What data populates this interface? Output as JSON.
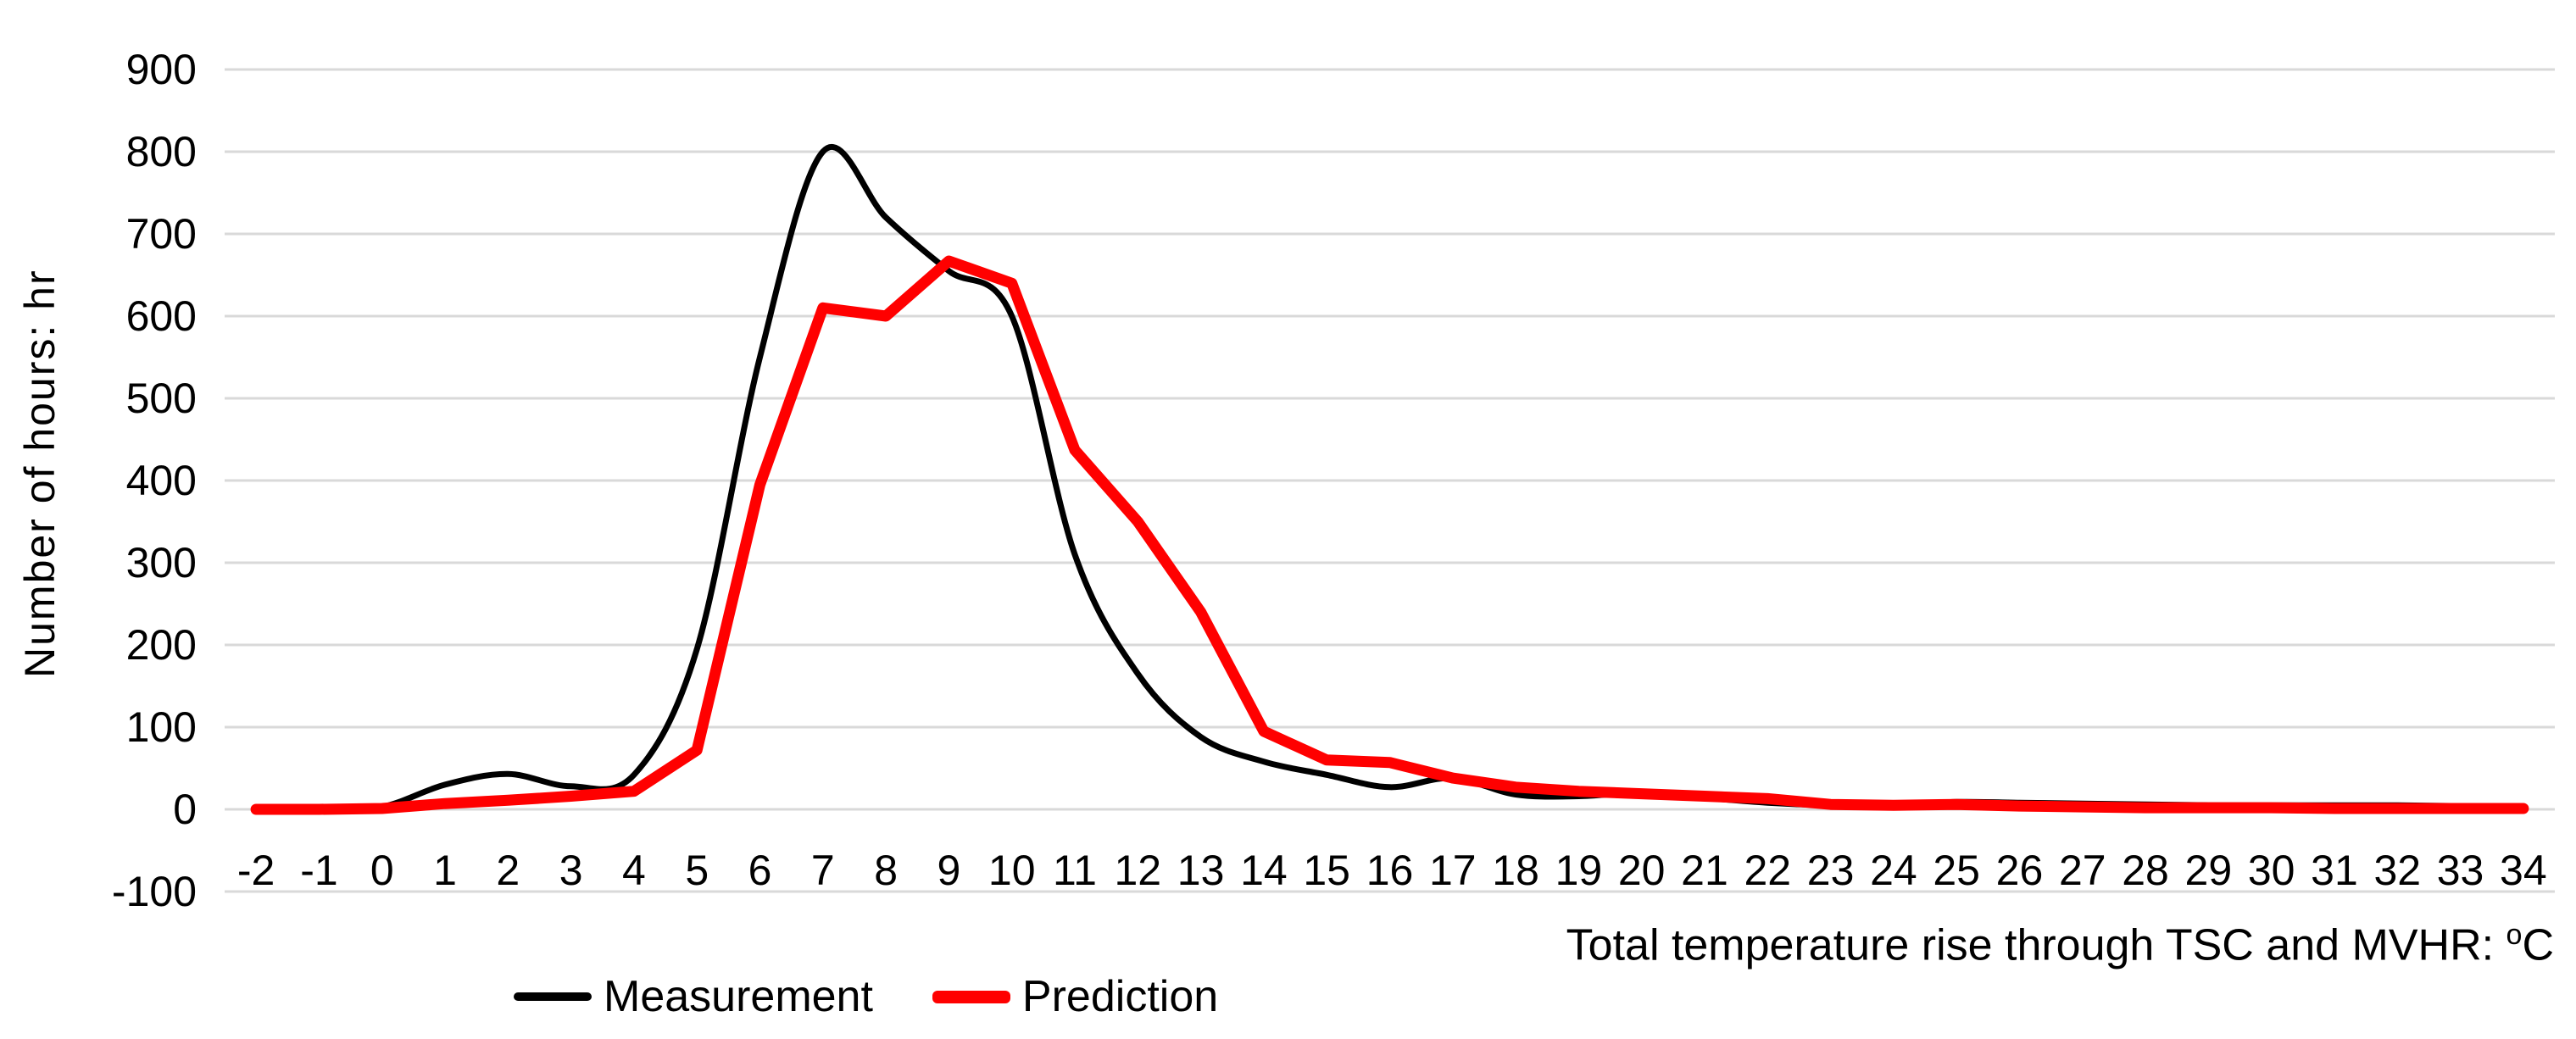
{
  "chart_data": {
    "type": "line",
    "title": "",
    "xlabel": "Total temperature rise through TSC and MVHR: °C",
    "xlabel_main": "Total temperature rise through TSC and MVHR: ",
    "xlabel_sup": "o",
    "xlabel_unit": "C",
    "ylabel": "Number of hours: hr",
    "categories": [
      "-2",
      "-1",
      "0",
      "1",
      "2",
      "3",
      "4",
      "5",
      "6",
      "7",
      "8",
      "9",
      "10",
      "11",
      "12",
      "13",
      "14",
      "15",
      "16",
      "17",
      "18",
      "19",
      "20",
      "21",
      "22",
      "23",
      "24",
      "25",
      "26",
      "27",
      "28",
      "29",
      "30",
      "31",
      "32",
      "33",
      "34"
    ],
    "series": [
      {
        "name": "Measurement",
        "color": "#000000",
        "stroke_width": 7,
        "smooth": true,
        "values": [
          0,
          0,
          3,
          30,
          43,
          28,
          42,
          195,
          550,
          800,
          720,
          655,
          600,
          310,
          165,
          88,
          58,
          42,
          27,
          38,
          18,
          16,
          20,
          14,
          8,
          5,
          5,
          9,
          8,
          7,
          6,
          5,
          5,
          5,
          5,
          4,
          3
        ]
      },
      {
        "name": "Prediction",
        "color": "#FF0000",
        "stroke_width": 13,
        "smooth": false,
        "values": [
          0,
          0,
          1,
          7,
          11,
          16,
          22,
          72,
          395,
          610,
          600,
          667,
          640,
          437,
          350,
          240,
          95,
          60,
          57,
          38,
          27,
          22,
          19,
          16,
          13,
          6,
          5,
          6,
          4,
          3,
          2,
          2,
          2,
          1,
          1,
          1,
          1
        ]
      }
    ],
    "yticks": [
      900,
      800,
      700,
      600,
      500,
      400,
      300,
      200,
      100,
      0,
      -100
    ],
    "ylim": [
      -100,
      900
    ],
    "xlim_categories": [
      "-2",
      "34"
    ],
    "grid": "horizontal",
    "gridline_color": "#D9D9D9",
    "legend_position": "bottom-left",
    "legend_entries": [
      "Measurement",
      "Prediction"
    ]
  }
}
